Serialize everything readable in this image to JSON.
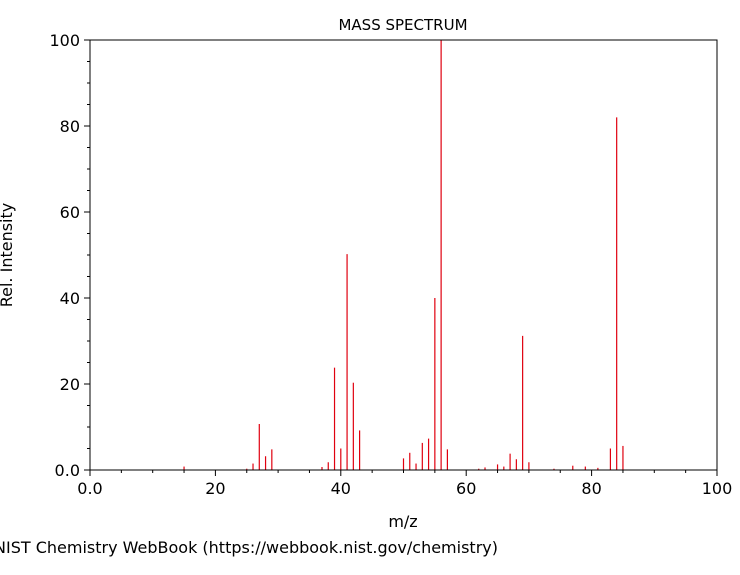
{
  "chart_data": {
    "type": "bar",
    "title": "MASS SPECTRUM",
    "xlabel": "m/z",
    "ylabel": "Rel. Intensity",
    "xlim": [
      0,
      100
    ],
    "ylim": [
      0,
      100
    ],
    "x_ticks": [
      "0.0",
      "20",
      "40",
      "60",
      "80",
      "100"
    ],
    "y_ticks": [
      "0.0",
      "20",
      "40",
      "60",
      "80",
      "100"
    ],
    "grid": false,
    "bar_color": "#e0000f",
    "peaks": [
      {
        "mz": 15,
        "intensity": 0.8
      },
      {
        "mz": 25,
        "intensity": 0.3
      },
      {
        "mz": 26,
        "intensity": 1.5
      },
      {
        "mz": 27,
        "intensity": 10.7
      },
      {
        "mz": 28,
        "intensity": 3.2
      },
      {
        "mz": 29,
        "intensity": 4.8
      },
      {
        "mz": 37,
        "intensity": 0.7
      },
      {
        "mz": 38,
        "intensity": 1.8
      },
      {
        "mz": 39,
        "intensity": 23.8
      },
      {
        "mz": 40,
        "intensity": 5.0
      },
      {
        "mz": 41,
        "intensity": 50.2
      },
      {
        "mz": 42,
        "intensity": 20.3
      },
      {
        "mz": 43,
        "intensity": 9.2
      },
      {
        "mz": 50,
        "intensity": 2.7
      },
      {
        "mz": 51,
        "intensity": 4.0
      },
      {
        "mz": 52,
        "intensity": 1.5
      },
      {
        "mz": 53,
        "intensity": 6.3
      },
      {
        "mz": 54,
        "intensity": 7.3
      },
      {
        "mz": 55,
        "intensity": 40.0
      },
      {
        "mz": 56,
        "intensity": 100
      },
      {
        "mz": 57,
        "intensity": 4.8
      },
      {
        "mz": 62,
        "intensity": 0.3
      },
      {
        "mz": 63,
        "intensity": 0.6
      },
      {
        "mz": 65,
        "intensity": 1.3
      },
      {
        "mz": 66,
        "intensity": 0.8
      },
      {
        "mz": 67,
        "intensity": 3.8
      },
      {
        "mz": 68,
        "intensity": 2.5
      },
      {
        "mz": 69,
        "intensity": 31.2
      },
      {
        "mz": 70,
        "intensity": 1.8
      },
      {
        "mz": 74,
        "intensity": 0.3
      },
      {
        "mz": 77,
        "intensity": 1.0
      },
      {
        "mz": 79,
        "intensity": 0.8
      },
      {
        "mz": 81,
        "intensity": 0.5
      },
      {
        "mz": 83,
        "intensity": 5.0
      },
      {
        "mz": 84,
        "intensity": 82.0
      },
      {
        "mz": 85,
        "intensity": 5.6
      }
    ]
  },
  "footer": {
    "credit": "NIST Chemistry WebBook (https://webbook.nist.gov/chemistry)"
  }
}
